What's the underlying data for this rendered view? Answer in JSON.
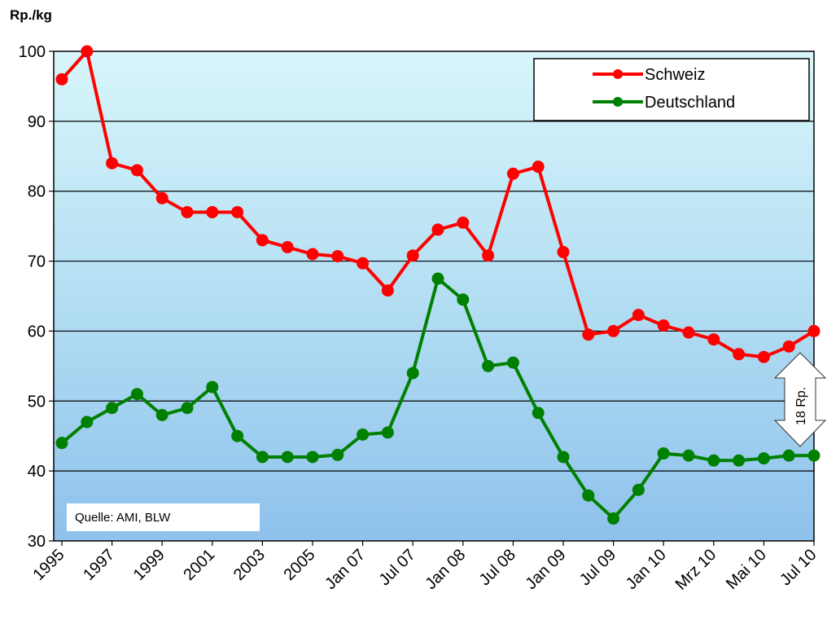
{
  "chart_data": {
    "type": "line",
    "title": "",
    "ylabel": "Rp./kg",
    "xlabel": "",
    "ylim": [
      30,
      100
    ],
    "yticks": [
      30,
      40,
      50,
      60,
      70,
      80,
      90,
      100
    ],
    "grid": true,
    "legend": "top-right",
    "x_tick_labels": [
      "1995",
      "1997",
      "1999",
      "2001",
      "2003",
      "2005",
      "Jan 07",
      "Jul 07",
      "Jan 08",
      "Jul 08",
      "Jan 09",
      "Jul 09",
      "Jan 10",
      "Mrz 10",
      "Mai 10",
      "Jul 10"
    ],
    "series": [
      {
        "name": "Schweiz",
        "color": "#ff0000",
        "values": [
          96,
          100,
          84,
          83,
          79,
          77,
          77,
          77,
          73,
          72,
          71,
          70.7,
          69.7,
          65.8,
          70.8,
          74.5,
          75.5,
          70.8,
          82.5,
          83.5,
          71.3,
          59.5,
          60,
          62.3,
          60.8,
          59.8,
          58.8,
          56.7,
          56.3,
          57.8,
          60
        ]
      },
      {
        "name": "Deutschland",
        "color": "#008000",
        "values": [
          44,
          47,
          49,
          51,
          48,
          49,
          52,
          45,
          42,
          42,
          42,
          42.3,
          45.2,
          45.5,
          54,
          67.5,
          64.5,
          55,
          55.5,
          48.3,
          42,
          36.5,
          33.2,
          37.3,
          42.5,
          42.2,
          41.5,
          41.5,
          41.8,
          42.2,
          42.2
        ]
      }
    ],
    "annotations": {
      "source": "Quelle: AMI, BLW",
      "gap_label": "18 Rp."
    }
  }
}
